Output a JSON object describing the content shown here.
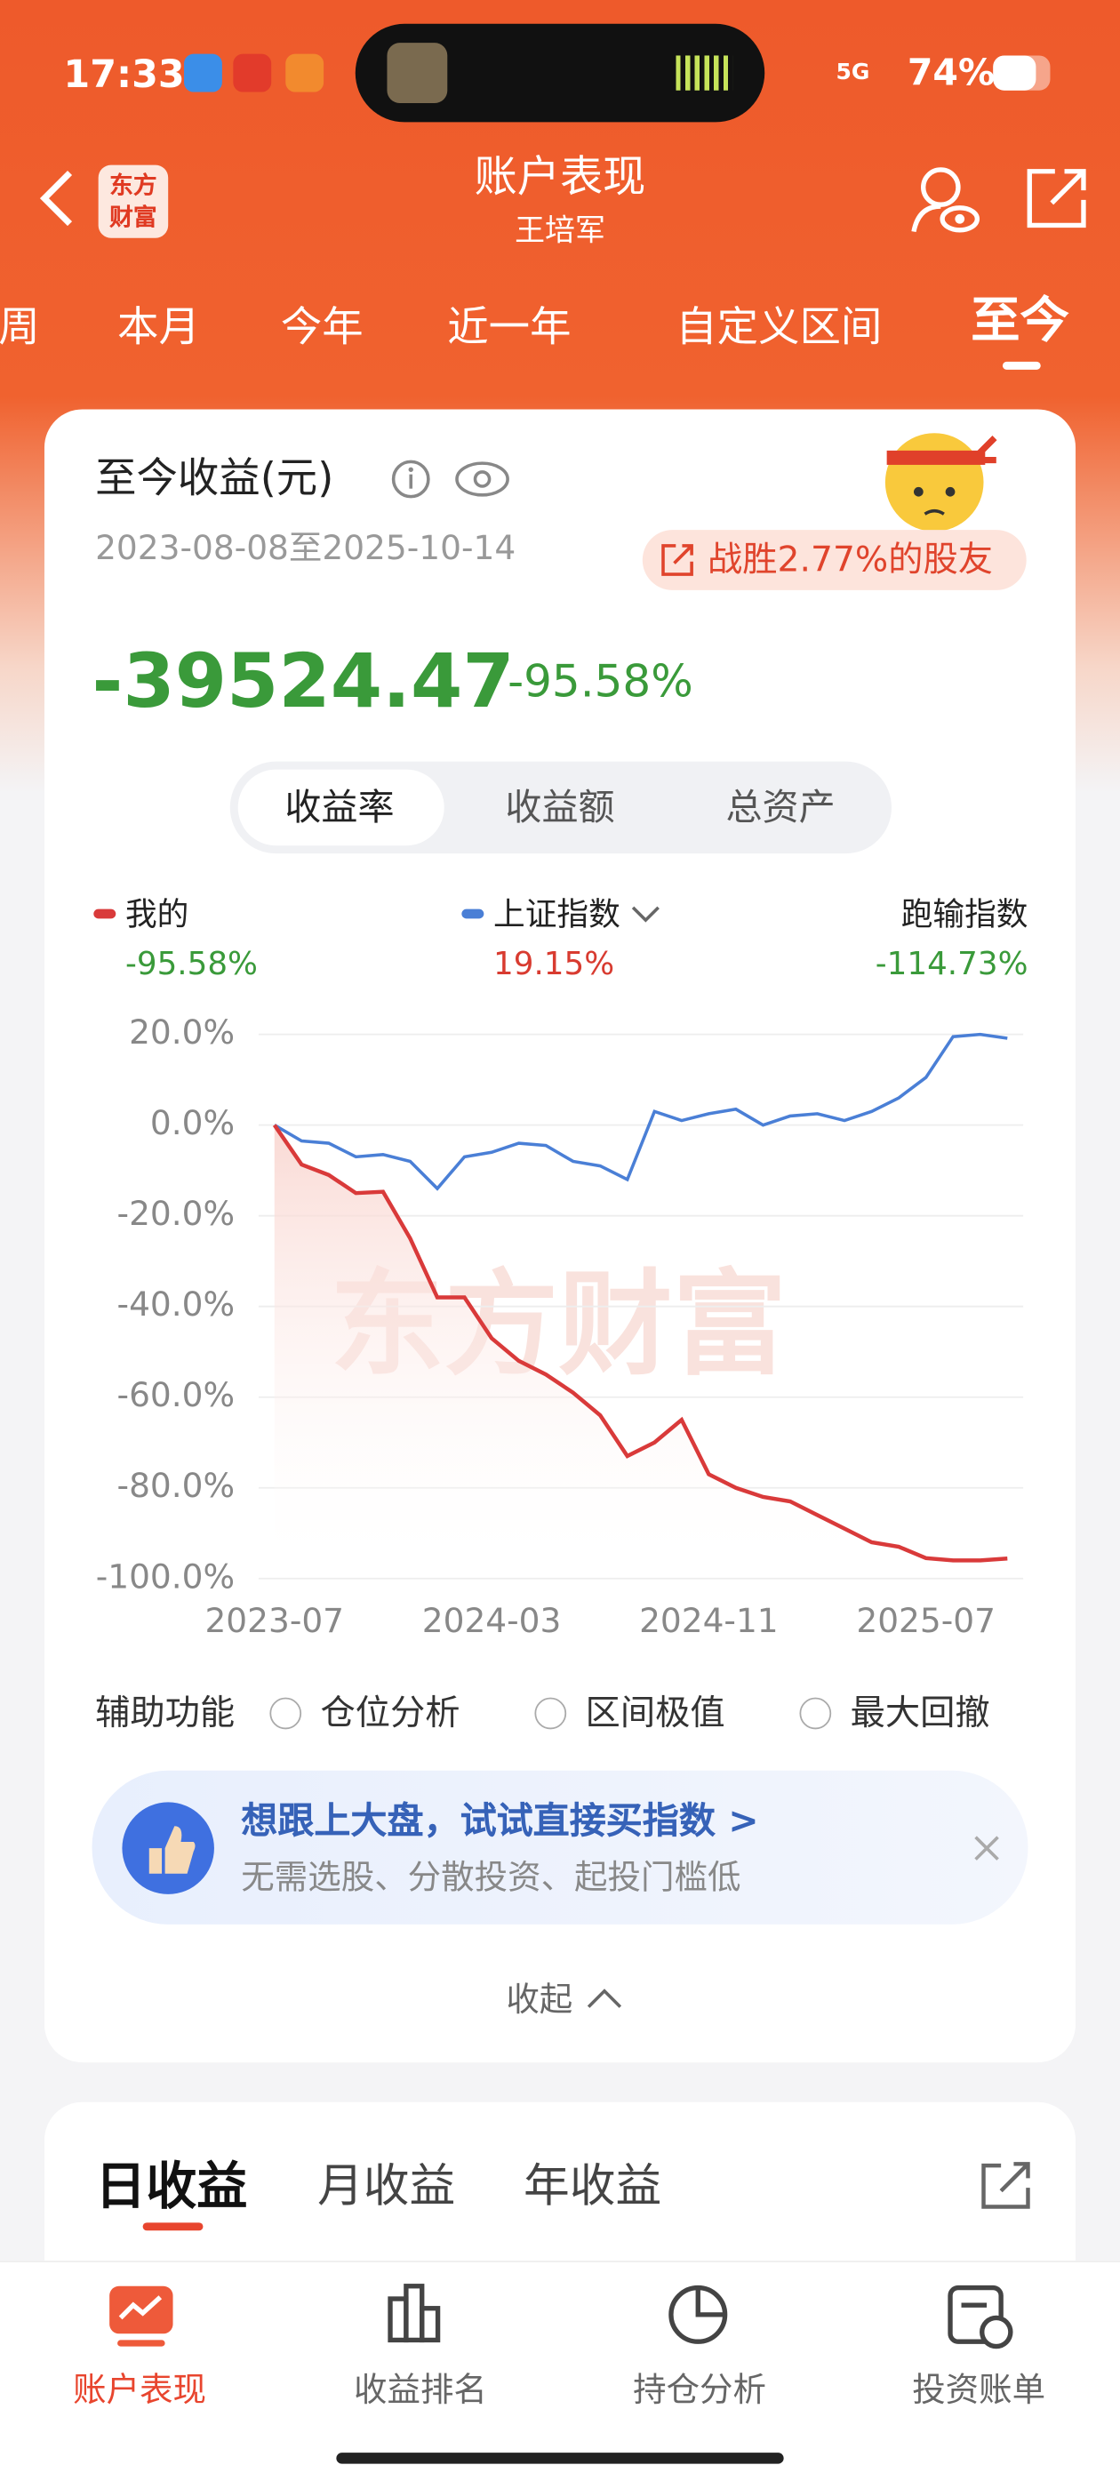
{
  "status_bar": {
    "time": "17:33",
    "network": "5G",
    "battery": "74%"
  },
  "header": {
    "logo_lines": [
      "东方",
      "财富"
    ],
    "title": "账户表现",
    "subtitle": "王培军"
  },
  "period_tabs": {
    "items": [
      "周",
      "本月",
      "今年",
      "近一年",
      "自定义区间",
      "至今"
    ],
    "active": 5
  },
  "summary": {
    "title": "至今收益(元)",
    "date_range": "2023-08-08至2025-10-14",
    "badge": "战胜2.77%的股友",
    "amount": "-39524.47",
    "rate": "-95.58%"
  },
  "metric_tabs": {
    "items": [
      "收益率",
      "收益额",
      "总资产"
    ],
    "active": 0
  },
  "chart_data": {
    "type": "line",
    "categories": [
      "2023-07",
      null,
      null,
      null,
      null,
      null,
      null,
      null,
      "2024-03",
      null,
      null,
      null,
      null,
      null,
      null,
      null,
      "2024-11",
      null,
      null,
      null,
      null,
      null,
      null,
      null,
      "2025-07",
      null,
      null,
      null
    ],
    "series": [
      {
        "name": "我的",
        "color": "#d93a3a",
        "summary_label": "-95.58%",
        "values": [
          0,
          -8.7,
          -11,
          -15,
          -14.7,
          -25,
          -38,
          -38,
          -47,
          -52,
          -55,
          -59,
          -64,
          -73,
          -70,
          -65,
          -77,
          -80,
          -82,
          -83,
          -86,
          -89,
          -92,
          -93,
          -95.5,
          -96,
          -96,
          -95.58
        ]
      },
      {
        "name": "上证指数",
        "color": "#4a7fd6",
        "summary_label": "19.15%",
        "values": [
          0,
          -3.5,
          -4,
          -7,
          -6.5,
          -8,
          -14,
          -7,
          -6,
          -4,
          -4.5,
          -8,
          -9,
          -12,
          3,
          1,
          2.5,
          3.5,
          0,
          2,
          2.5,
          1,
          3,
          6,
          10.5,
          19.5,
          20,
          19.15
        ]
      }
    ],
    "excess": {
      "name": "跑输指数",
      "summary_label": "-114.73%"
    },
    "ylim": [
      -100,
      20
    ],
    "yticks": [
      {
        "value": 20,
        "label": "20.0%"
      },
      {
        "value": 0,
        "label": "0.0%"
      },
      {
        "value": -20,
        "label": "-20.0%"
      },
      {
        "value": -40,
        "label": "-40.0%"
      },
      {
        "value": -60,
        "label": "-60.0%"
      },
      {
        "value": -80,
        "label": "-80.0%"
      },
      {
        "value": -100,
        "label": "-100.0%"
      }
    ],
    "grid": true,
    "watermark": "东方财富"
  },
  "aux": {
    "label": "辅助功能",
    "options": [
      "仓位分析",
      "区间极值",
      "最大回撤"
    ]
  },
  "promo": {
    "title": "想跟上大盘，试试直接买指数 >",
    "subtitle": "无需选股、分散投资、起投门槛低"
  },
  "collapse": "收起",
  "income_tabs": {
    "items": [
      "日收益",
      "月收益",
      "年收益"
    ],
    "active": 0
  },
  "bottom_nav": {
    "items": [
      "账户表现",
      "收益排名",
      "持仓分析",
      "投资账单"
    ],
    "active": 0
  }
}
